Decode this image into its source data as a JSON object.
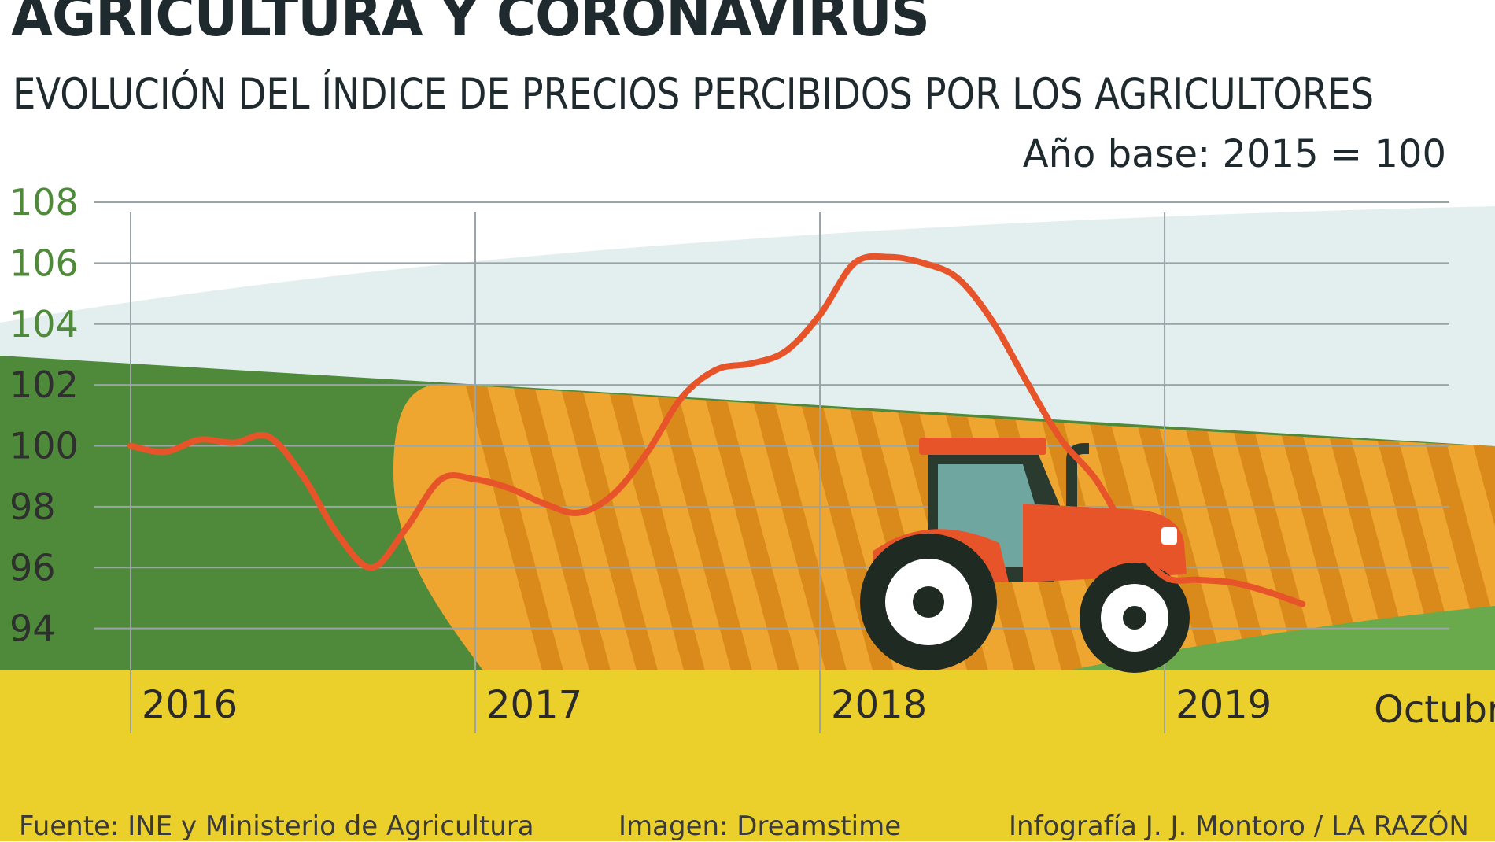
{
  "header": {
    "title": "AGRICULTURA Y CORONAVIRUS",
    "subtitle": "EVOLUCIÓN DEL ÍNDICE DE PRECIOS PERCIBIDOS POR LOS AGRICULTORES",
    "base_note": "Año base: 2015 = 100"
  },
  "footer": {
    "source": "Fuente: INE y Ministerio de Agricultura",
    "image": "Imagen: Dreamstime",
    "credit": "Infografía J. J. Montoro / LA RAZÓN"
  },
  "colors": {
    "line": "#e8542a",
    "sky": "#e3efef",
    "dark_green": "#4e8a3a",
    "light_green": "#6aaa4c",
    "orange_field": "#eea630",
    "stripe": "#d98a1a",
    "yellow_band": "#ebcf2b",
    "grid": "#9aa4a6",
    "tractor_body": "#e8542a",
    "tractor_cab_glass": "#6fa7a0",
    "tire": "#1f2a22"
  },
  "chart_data": {
    "type": "line",
    "title": "AGRICULTURA Y CORONAVIRUS",
    "subtitle": "EVOLUCIÓN DEL ÍNDICE DE PRECIOS PERCIBIDOS POR LOS AGRICULTORES",
    "xlabel": "",
    "ylabel": "",
    "ylim": [
      92,
      108
    ],
    "yticks": [
      108,
      106,
      104,
      102,
      100,
      98,
      96,
      94
    ],
    "xlim": [
      2016,
      2019.84
    ],
    "xticks": [
      {
        "value": 2016,
        "label": "2016"
      },
      {
        "value": 2017,
        "label": "2017"
      },
      {
        "value": 2018,
        "label": "2018"
      },
      {
        "value": 2019,
        "label": "2019"
      },
      {
        "value": 2019.79,
        "label": "Octubre"
      }
    ],
    "grid": true,
    "legend": "none",
    "series": [
      {
        "values": [
          [
            2016.0,
            100.0
          ],
          [
            2016.1,
            99.8
          ],
          [
            2016.2,
            100.2
          ],
          [
            2016.3,
            100.1
          ],
          [
            2016.4,
            100.3
          ],
          [
            2016.5,
            99.0
          ],
          [
            2016.6,
            97.1
          ],
          [
            2016.7,
            96.0
          ],
          [
            2016.8,
            97.3
          ],
          [
            2016.9,
            98.9
          ],
          [
            2017.0,
            98.9
          ],
          [
            2017.1,
            98.6
          ],
          [
            2017.2,
            98.1
          ],
          [
            2017.3,
            97.8
          ],
          [
            2017.4,
            98.4
          ],
          [
            2017.5,
            99.8
          ],
          [
            2017.6,
            101.6
          ],
          [
            2017.7,
            102.5
          ],
          [
            2017.8,
            102.7
          ],
          [
            2017.9,
            103.1
          ],
          [
            2018.0,
            104.3
          ],
          [
            2018.1,
            106.0
          ],
          [
            2018.2,
            106.2
          ],
          [
            2018.3,
            106.0
          ],
          [
            2018.4,
            105.5
          ],
          [
            2018.5,
            104.1
          ],
          [
            2018.6,
            102.1
          ],
          [
            2018.7,
            100.2
          ],
          [
            2018.8,
            98.9
          ],
          [
            2018.9,
            97.0
          ],
          [
            2019.0,
            95.7
          ],
          [
            2019.1,
            95.6
          ],
          [
            2019.2,
            95.5
          ],
          [
            2019.3,
            95.2
          ],
          [
            2019.4,
            94.8
          ]
        ]
      }
    ]
  }
}
